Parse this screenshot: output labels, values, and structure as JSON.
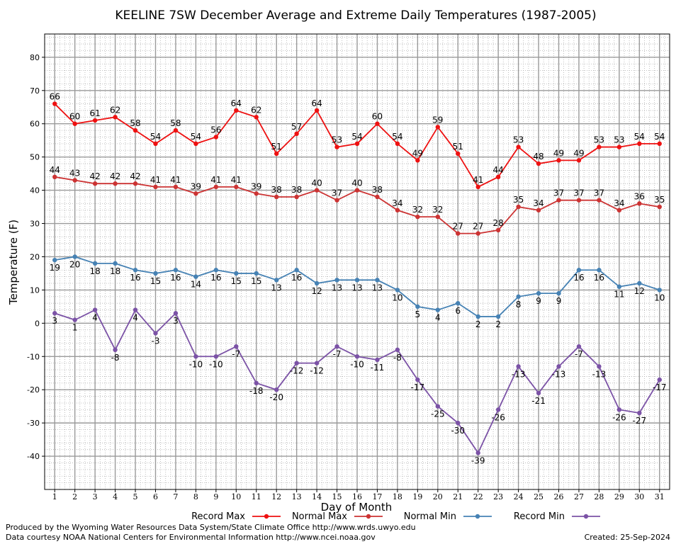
{
  "credits": {
    "produced_by": "Produced by the Wyoming Water Resources Data System/State Climate Office http://www.wrds.uwyo.edu",
    "data_courtesy": "Data courtesy NOAA National Centers for Environmental Information http://www.ncei.noaa.gov",
    "created": "Created:  25-Sep-2024"
  },
  "chart_data": {
    "type": "line",
    "title": "KEELINE 7SW December Average and Extreme Daily Temperatures (1987-2005)",
    "xlabel": "Day of Month",
    "ylabel": "Temperature (F)",
    "x": [
      1,
      2,
      3,
      4,
      5,
      6,
      7,
      8,
      9,
      10,
      11,
      12,
      13,
      14,
      15,
      16,
      17,
      18,
      19,
      20,
      21,
      22,
      23,
      24,
      25,
      26,
      27,
      28,
      29,
      30,
      31
    ],
    "xlim": [
      0.5,
      31.5
    ],
    "ylim": [
      -50,
      87
    ],
    "yticks": [
      -40,
      -30,
      -20,
      -10,
      0,
      10,
      20,
      30,
      40,
      50,
      60,
      70,
      80
    ],
    "grid": true,
    "legend_position": "bottom",
    "series": [
      {
        "name": "Record Max",
        "color": "#ee1111",
        "label_position": "above",
        "values": [
          66,
          60,
          61,
          62,
          58,
          54,
          58,
          54,
          56,
          64,
          62,
          51,
          57,
          64,
          53,
          54,
          60,
          54,
          49,
          59,
          51,
          41,
          44,
          53,
          48,
          49,
          49,
          53,
          53,
          54,
          54
        ]
      },
      {
        "name": "Normal Max",
        "color": "#cc3333",
        "label_position": "above",
        "values": [
          44,
          43,
          42,
          42,
          42,
          41,
          41,
          39,
          41,
          41,
          39,
          38,
          38,
          40,
          37,
          40,
          38,
          34,
          32,
          32,
          27,
          27,
          28,
          35,
          34,
          37,
          37,
          37,
          34,
          36,
          35
        ]
      },
      {
        "name": "Normal Min",
        "color": "#4682b4",
        "label_position": "below",
        "values": [
          19,
          20,
          18,
          18,
          16,
          15,
          16,
          14,
          16,
          15,
          15,
          13,
          16,
          12,
          13,
          13,
          13,
          10,
          5,
          4,
          6,
          2,
          2,
          8,
          9,
          9,
          16,
          16,
          11,
          12,
          10
        ]
      },
      {
        "name": "Record Min",
        "color": "#7b52a6",
        "label_position": "below",
        "values": [
          3,
          1,
          4,
          -8,
          4,
          -3,
          3,
          -10,
          -10,
          -7,
          -18,
          -20,
          -12,
          -12,
          -7,
          -10,
          -11,
          -8,
          -17,
          -25,
          -30,
          -39,
          -26,
          -13,
          -21,
          -13,
          -7,
          -13,
          -26,
          -27,
          -17
        ]
      }
    ]
  }
}
